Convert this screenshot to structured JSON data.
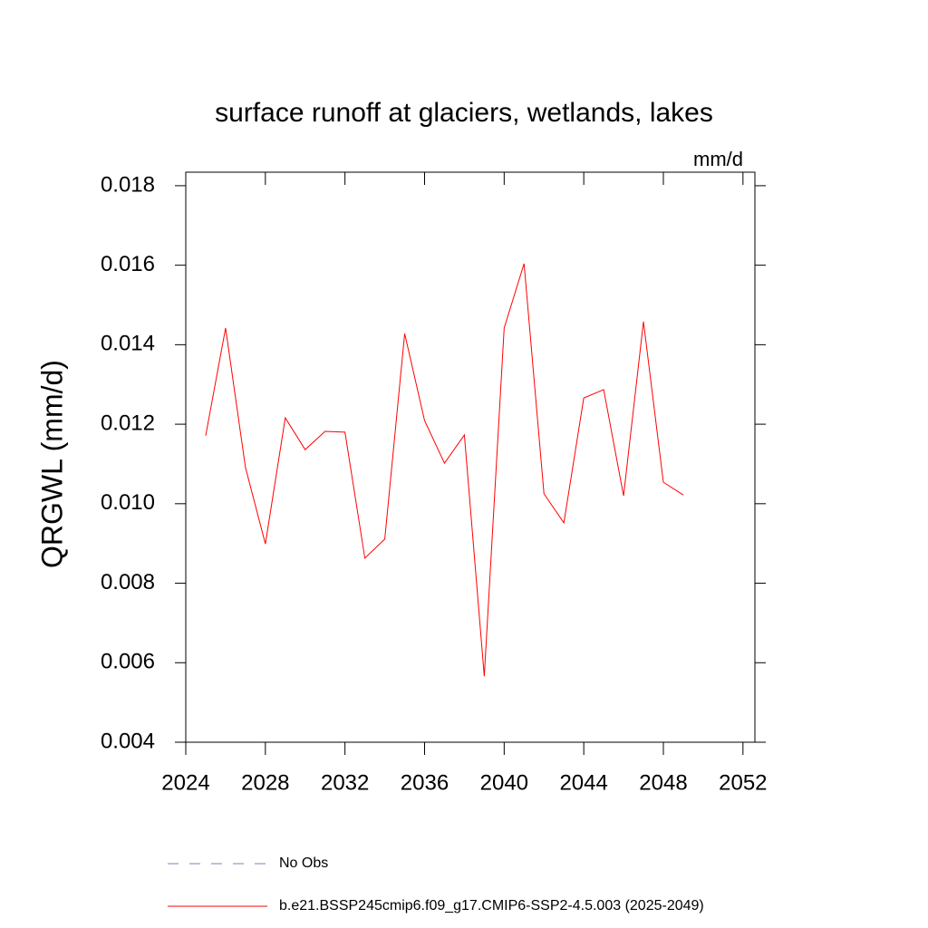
{
  "chart_data": {
    "type": "line",
    "title": "surface runoff at glaciers, wetlands, lakes",
    "units": "mm/d",
    "y_label": "QRGWL  (mm/d)",
    "x": [
      2025,
      2026,
      2027,
      2028,
      2029,
      2030,
      2031,
      2032,
      2033,
      2034,
      2035,
      2036,
      2037,
      2038,
      2039,
      2040,
      2041,
      2042,
      2043,
      2044,
      2045,
      2046,
      2047,
      2048,
      2049
    ],
    "series": [
      {
        "name": "No Obs",
        "color": "#7f7fbf",
        "dashed": true,
        "values": [
          null,
          null,
          null,
          null,
          null,
          null,
          null,
          null,
          null,
          null,
          null,
          null,
          null,
          null,
          null,
          null,
          null,
          null,
          null,
          null,
          null,
          null,
          null,
          null,
          null
        ]
      },
      {
        "name": "b.e21.BSSP245cmip6.f09_g17.CMIP6-SSP2-4.5.003 (2025-2049)",
        "color": "#ff0000",
        "dashed": false,
        "values": [
          0.01171,
          0.01442,
          0.01091,
          0.00899,
          0.01216,
          0.01136,
          0.01182,
          0.0118,
          0.00863,
          0.00911,
          0.01428,
          0.01209,
          0.01102,
          0.01173,
          0.00566,
          0.01442,
          0.01604,
          0.01025,
          0.00952,
          0.01266,
          0.01287,
          0.0102,
          0.01458,
          0.01054,
          0.01022
        ]
      }
    ],
    "xlim": [
      2024,
      2052.6
    ],
    "ylim": [
      0.004,
      0.01834
    ],
    "xticks": [
      2024,
      2028,
      2032,
      2036,
      2040,
      2044,
      2048,
      2052
    ],
    "yticks": [
      {
        "value": 0.004,
        "label": "0.004"
      },
      {
        "value": 0.006,
        "label": "0.006"
      },
      {
        "value": 0.008,
        "label": "0.008"
      },
      {
        "value": 0.01,
        "label": "0.010"
      },
      {
        "value": 0.012,
        "label": "0.012"
      },
      {
        "value": 0.014,
        "label": "0.014"
      },
      {
        "value": 0.016,
        "label": "0.016"
      },
      {
        "value": 0.018,
        "label": "0.018"
      }
    ]
  }
}
